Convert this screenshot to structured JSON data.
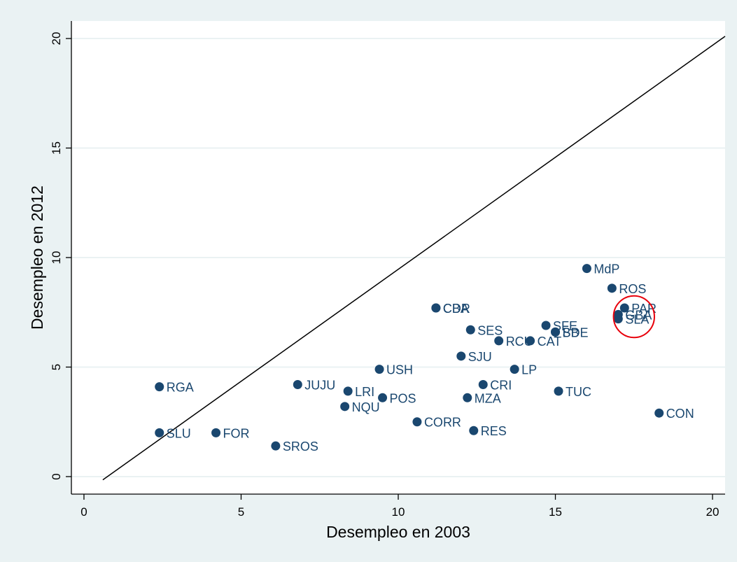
{
  "colors": {
    "outer_bg": "#eaf2f3",
    "plot_bg": "#ffffff",
    "grid": "#eaf2f3",
    "axis": "#000000",
    "marker": "#1a476f",
    "label": "#1a476f",
    "line": "#000000",
    "highlight": "#e8000b"
  },
  "chart_data": {
    "type": "scatter",
    "title": "",
    "xlabel": "Desempleo en 2003",
    "ylabel": "Desempleo en 2012",
    "xlim": [
      -0.4,
      20.4
    ],
    "ylim": [
      -0.8,
      20.8
    ],
    "xticks": [
      0,
      5,
      10,
      15,
      20
    ],
    "yticks": [
      0,
      5,
      10,
      15,
      20
    ],
    "xtick_labels": [
      "0",
      "5",
      "10",
      "15",
      "20"
    ],
    "ytick_labels": [
      "0",
      "5",
      "10",
      "15",
      "20"
    ],
    "grid": "horizontal",
    "reference_line": {
      "from": [
        0.6,
        -0.15
      ],
      "to": [
        20.4,
        20.1
      ]
    },
    "highlight_ellipse": {
      "cx": 17.5,
      "cy": 7.3,
      "rx": 0.65,
      "ry": 0.95
    },
    "points": [
      {
        "label": "RGA",
        "x": 2.4,
        "y": 4.1
      },
      {
        "label": "SLU",
        "x": 2.4,
        "y": 2.0
      },
      {
        "label": "FOR",
        "x": 4.2,
        "y": 2.0
      },
      {
        "label": "SROS",
        "x": 6.1,
        "y": 1.4
      },
      {
        "label": "JUJU",
        "x": 6.8,
        "y": 4.2
      },
      {
        "label": "LRI",
        "x": 8.4,
        "y": 3.9
      },
      {
        "label": "NQU",
        "x": 8.3,
        "y": 3.2
      },
      {
        "label": "POS",
        "x": 9.5,
        "y": 3.6
      },
      {
        "label": "USH",
        "x": 9.4,
        "y": 4.9
      },
      {
        "label": "CORR",
        "x": 10.6,
        "y": 2.5
      },
      {
        "label": "CDR",
        "x": 11.2,
        "y": 7.7
      },
      {
        "label": "CBA",
        "x": 11.2,
        "y": 7.7
      },
      {
        "label": "SES",
        "x": 12.3,
        "y": 6.7
      },
      {
        "label": "SJU",
        "x": 12.0,
        "y": 5.5
      },
      {
        "label": "CRI",
        "x": 12.7,
        "y": 4.2
      },
      {
        "label": "MZA",
        "x": 12.2,
        "y": 3.6
      },
      {
        "label": "RES",
        "x": 12.4,
        "y": 2.1
      },
      {
        "label": "RCU",
        "x": 13.2,
        "y": 6.2
      },
      {
        "label": "CAT",
        "x": 14.2,
        "y": 6.2
      },
      {
        "label": "LP",
        "x": 13.7,
        "y": 4.9
      },
      {
        "label": "SFE",
        "x": 14.7,
        "y": 6.9
      },
      {
        "label": "SDE",
        "x": 15.0,
        "y": 6.6
      },
      {
        "label": "BB",
        "x": 15.0,
        "y": 6.6
      },
      {
        "label": "TUC",
        "x": 15.1,
        "y": 3.9
      },
      {
        "label": "MdP",
        "x": 16.0,
        "y": 9.5
      },
      {
        "label": "ROS",
        "x": 16.8,
        "y": 8.6
      },
      {
        "label": "PAR",
        "x": 17.2,
        "y": 7.7
      },
      {
        "label": "GBA",
        "x": 17.0,
        "y": 7.4
      },
      {
        "label": "SLA",
        "x": 17.0,
        "y": 7.2
      },
      {
        "label": "CON",
        "x": 18.3,
        "y": 2.9
      }
    ]
  }
}
